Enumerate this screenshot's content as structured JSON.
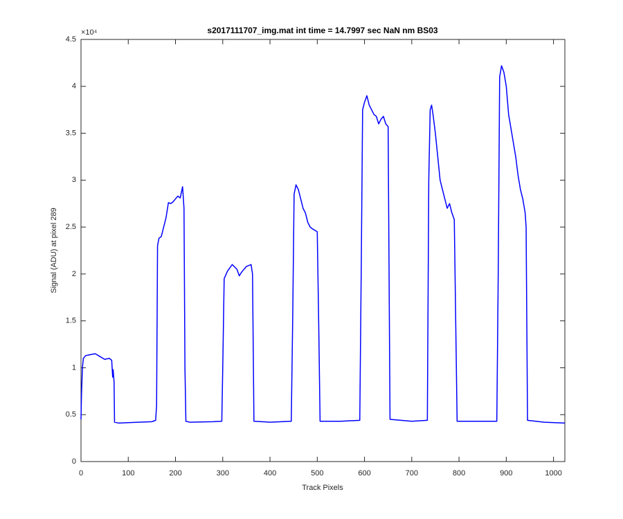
{
  "chart_data": {
    "type": "line",
    "title": "s2017111707_img.mat int time = 14.7997 sec  NaN nm BS03",
    "x_label": "Track Pixels",
    "y_label": "Signal (ADU) at pixel 289",
    "y_exponent_label": "×10⁴",
    "xlim": [
      0,
      1024
    ],
    "ylim": [
      0,
      45000
    ],
    "xticks": [
      0,
      100,
      200,
      300,
      400,
      500,
      600,
      700,
      800,
      900,
      1000
    ],
    "yticks": [
      0,
      {
        "value": 5000,
        "label": "0.5"
      },
      {
        "value": 10000,
        "label": "1"
      },
      {
        "value": 15000,
        "label": "1.5"
      },
      {
        "value": 20000,
        "label": "2"
      },
      {
        "value": 25000,
        "label": "2.5"
      },
      {
        "value": 30000,
        "label": "3"
      },
      {
        "value": 35000,
        "label": "3.5"
      },
      {
        "value": 40000,
        "label": "4"
      },
      {
        "value": 45000,
        "label": "4.5"
      }
    ],
    "grid": false,
    "x": [
      0,
      1,
      3,
      5,
      10,
      20,
      30,
      40,
      50,
      60,
      65,
      67,
      68,
      70,
      71,
      80,
      100,
      150,
      158,
      160,
      162,
      165,
      170,
      175,
      180,
      185,
      190,
      195,
      200,
      205,
      210,
      215,
      218,
      220,
      222,
      230,
      280,
      298,
      300,
      303,
      310,
      320,
      330,
      335,
      340,
      350,
      360,
      363,
      366,
      400,
      445,
      448,
      451,
      455,
      460,
      465,
      470,
      475,
      480,
      485,
      490,
      500,
      503,
      506,
      550,
      590,
      593,
      596,
      600,
      605,
      610,
      615,
      620,
      625,
      630,
      635,
      640,
      645,
      650,
      652,
      654,
      700,
      733,
      736,
      739,
      742,
      745,
      750,
      755,
      760,
      765,
      770,
      775,
      780,
      785,
      790,
      793,
      796,
      850,
      880,
      883,
      886,
      890,
      895,
      900,
      905,
      910,
      915,
      920,
      925,
      930,
      935,
      940,
      942,
      945,
      980,
      1024
    ],
    "series": [
      {
        "name": "signal",
        "color": "#0000ff",
        "values": [
          4500,
          7000,
          10000,
          11000,
          11300,
          11400,
          11500,
          11200,
          10900,
          11000,
          10800,
          9000,
          9800,
          8500,
          4200,
          4100,
          4150,
          4250,
          4400,
          6000,
          23000,
          23800,
          24000,
          25000,
          26000,
          27600,
          27500,
          27700,
          28000,
          28300,
          28100,
          29300,
          27000,
          10000,
          4300,
          4200,
          4250,
          4300,
          10000,
          19500,
          20300,
          21000,
          20500,
          19800,
          20200,
          20800,
          21000,
          20000,
          4300,
          4200,
          4300,
          15000,
          28500,
          29500,
          29000,
          28000,
          27000,
          26500,
          25500,
          25000,
          24800,
          24500,
          15000,
          4300,
          4300,
          4400,
          20000,
          37500,
          38300,
          39000,
          38000,
          37500,
          37000,
          36800,
          36000,
          36500,
          36800,
          36000,
          35700,
          20000,
          4500,
          4300,
          4400,
          30000,
          37500,
          38000,
          37000,
          35000,
          32500,
          30000,
          29000,
          28000,
          27000,
          27500,
          26500,
          25800,
          15000,
          4300,
          4300,
          4300,
          20000,
          41000,
          42200,
          41500,
          40000,
          37000,
          35500,
          34000,
          32500,
          30500,
          29000,
          28000,
          26500,
          25000,
          4400,
          4200,
          4100
        ]
      }
    ]
  }
}
